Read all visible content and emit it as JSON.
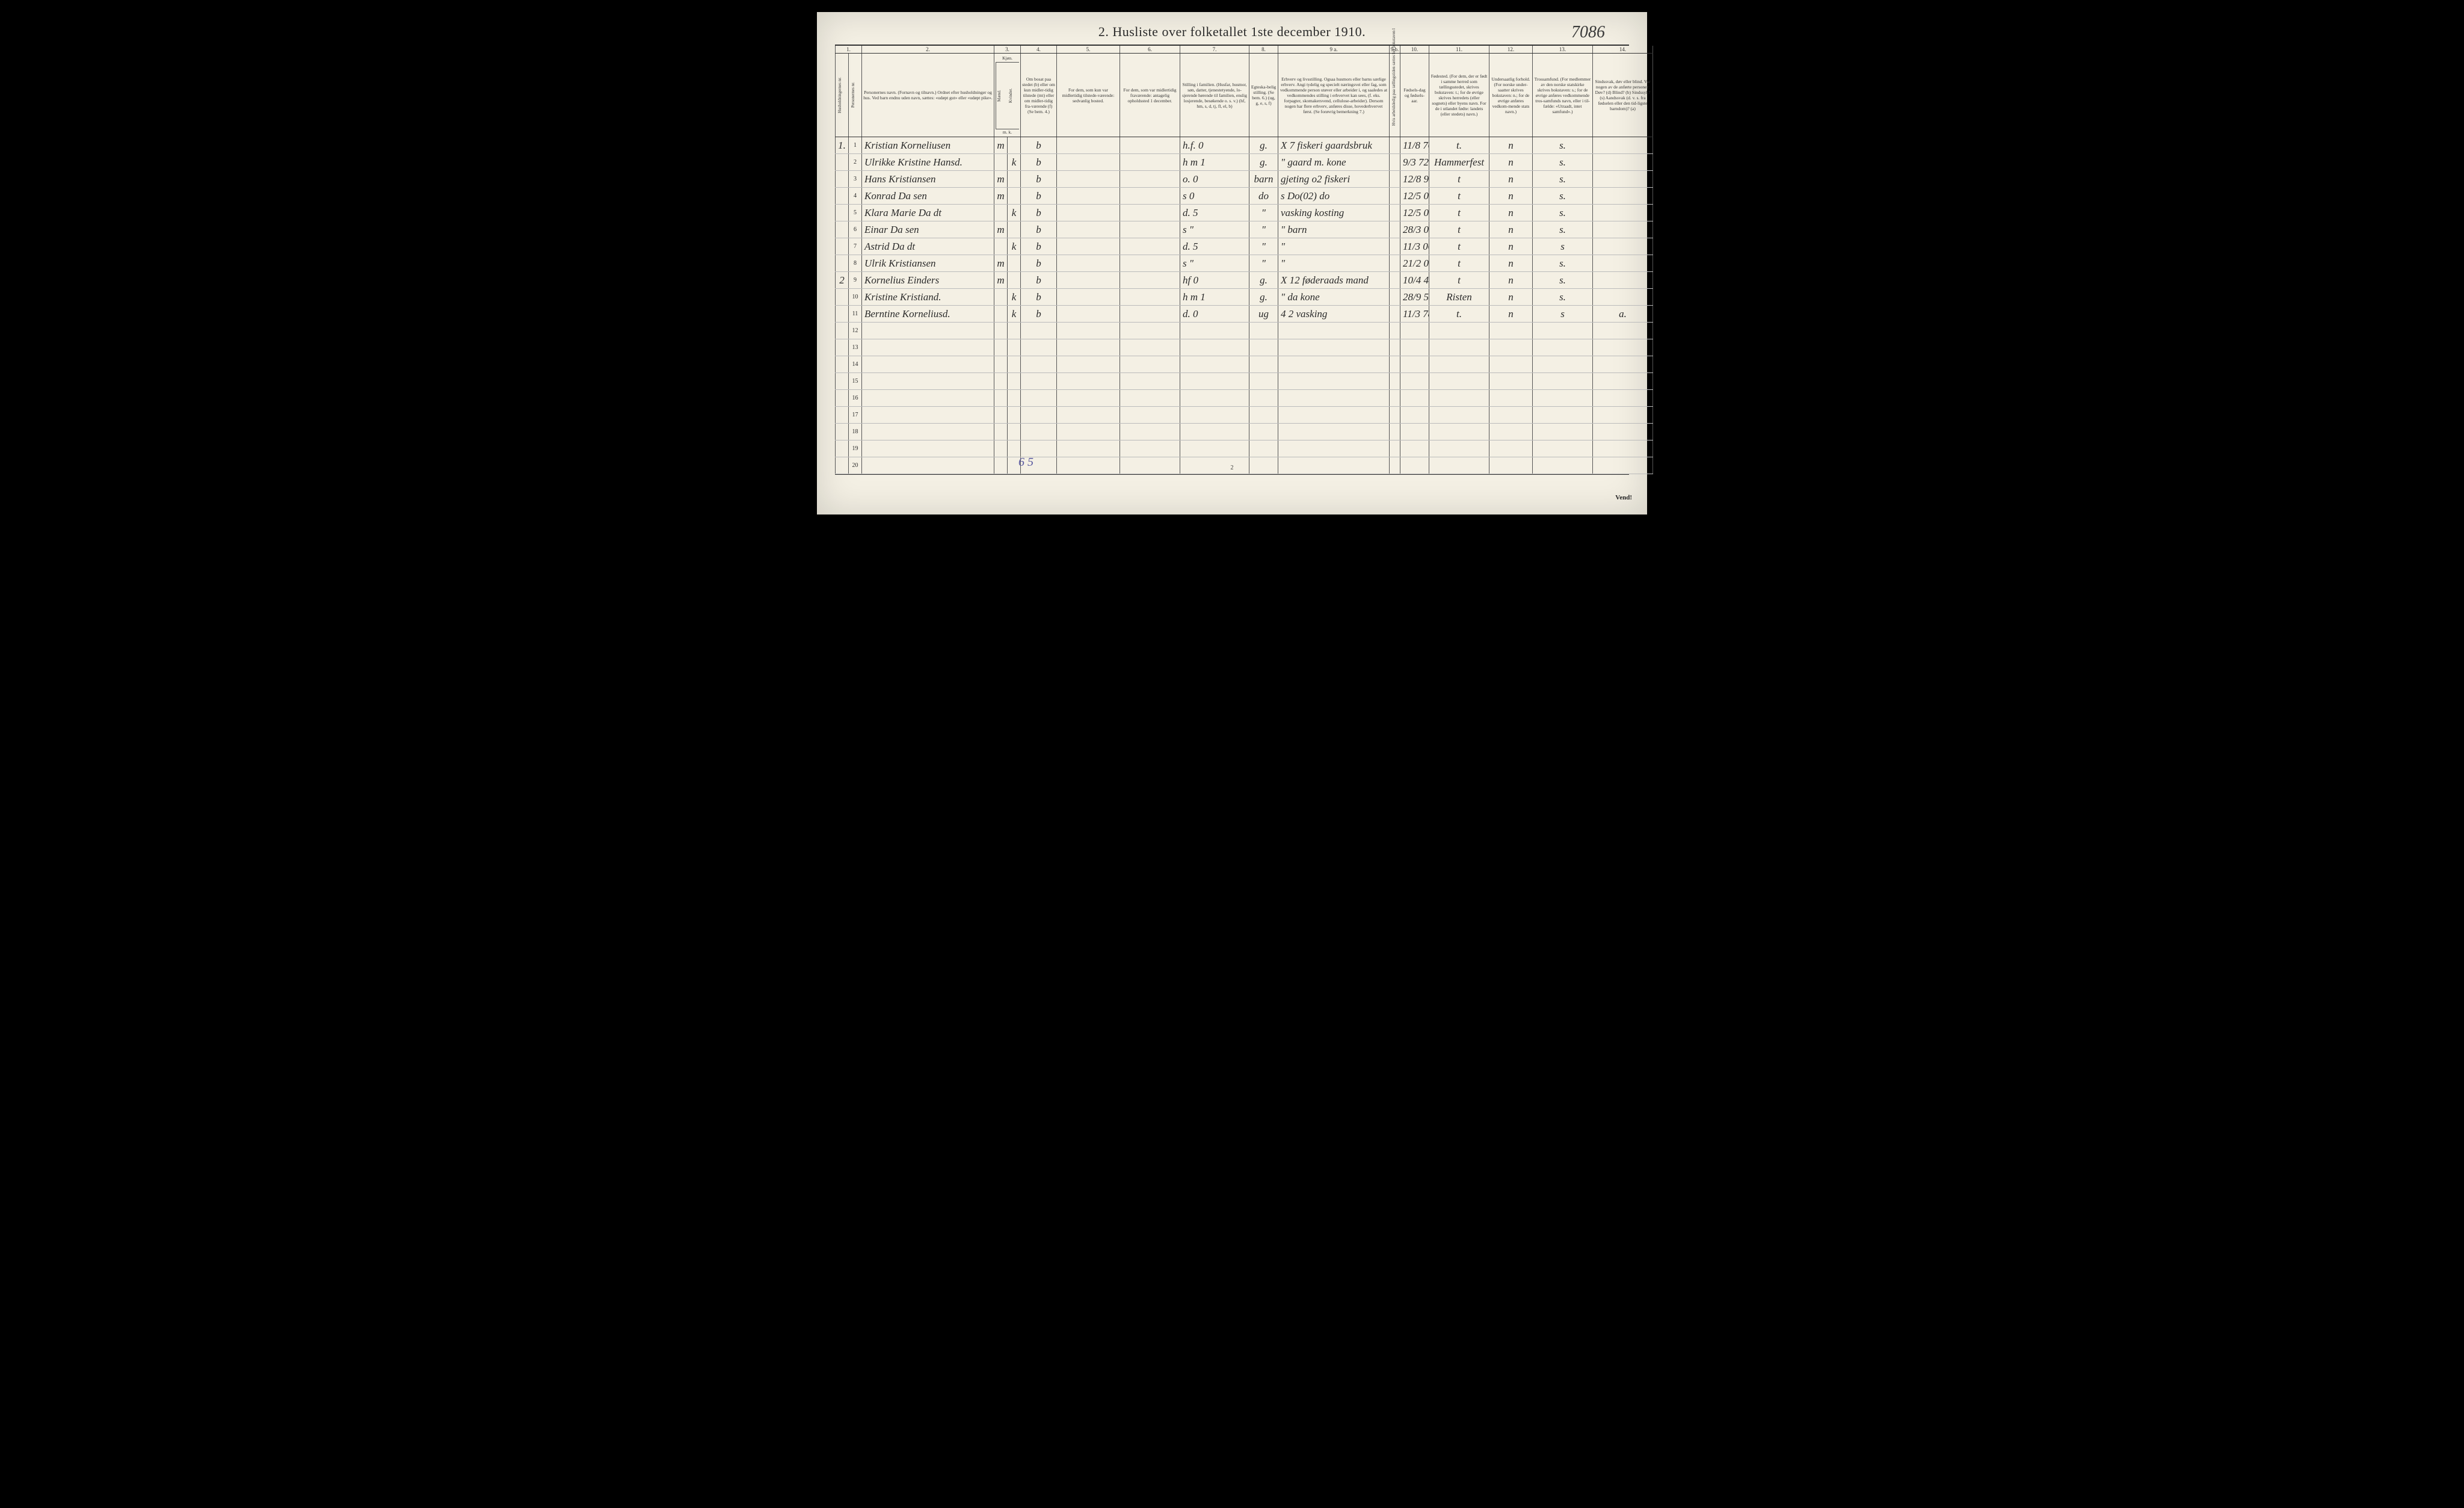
{
  "title": "2.  Husliste over folketallet 1ste december 1910.",
  "topRightHandwritten": "7086",
  "footerLeft": "6 5",
  "footerCenter": "2",
  "footerRight": "Vend!",
  "columnNumbers": [
    "1.",
    "2.",
    "3.",
    "4.",
    "5.",
    "6.",
    "7.",
    "8.",
    "9 a.",
    "9 b.",
    "10.",
    "11.",
    "12.",
    "13.",
    "14."
  ],
  "headers": {
    "h1a": "Husholdningernes nr.",
    "h1b": "Personernes nr.",
    "h2": "Personernes navn.\n(Fornavn og tilnavn.)\nOrdnet efter husholdninger og hus.\nVed barn endnu uden navn, sættes: «udøpt gut» eller «udøpt pike».",
    "h3": "Kjøn.",
    "h3a": "Mænd.",
    "h3b": "Kvinder.",
    "h3sub": "m. k.",
    "h4": "Om bosat paa stedet (b) eller om kun midler-tidig tilstede (mt) eller om midler-tidig fra-værende (f)\n(Se bem. 4.)",
    "h5": "For dem, som kun var midlertidig tilstede-værende:\nsedvanlig bosted.",
    "h6": "For dem, som var midlertidig fraværende:\nantagelig opholdssted 1 december.",
    "h7": "Stilling i familien.\n(Husfar, husmor, søn, datter, tjenestetyende, lo-sjerende hørende til familien, enslig losjerende, besøkende o. s. v.)\n(hf, hm, s, d, tj, fl, el, b)",
    "h8": "Egteska-belig stilling.\n(Se bem. 6.)\n(ug, g, e, s, f)",
    "h9a": "Erhverv og livsstilling.\nOgsaa husmors eller barns særlige erhverv.\nAngi tydelig og specielt næringsveі eller fag, som vedkommende person utøver eller arbeider i, og saaledes at vedkommendes stilling i erhvervet kan sees, (f. eks. forpagter, skomakersvend, cellulose-arbeider). Dersom nogen har flere erhverv, anføres disse, hovederhvervet først.\n(Se forøvrig bemerkning 7.)",
    "h9b": "Hvis arbeidsledig paa tællingstiden sættes her bokstaven l",
    "h10": "Fødsels-dag og fødsels-aar.",
    "h11": "Fødested.\n(For dem, der er født i samme herred som tællingsstedet, skrives bokstaven: t.; for de øvrige skrives herredets (eller sognets) eller byens navn. For de i utlandet fødte: landets (eller stedets) navn.)",
    "h12": "Undersaatlig forhold.\n(For norske under-saatter skrives bokstaven: n.; for de øvrige anføres vedkom-mende stats navn.)",
    "h13": "Trossamfund.\n(For medlemmer av den norske statskirke skrives bokstaven: s.; for de øvrige anføres vedkommende tros-samfunds navn, eller i til-fælde: «Utraadt, intet samfund».)",
    "h14": "Sindssvak, døv eller blind.\nVar nogen av de anførte personer:\nDøv? (d)\nBlind? (b)\nSindssyk? (s)\nAandssvak (d. v. s. fra fødselen eller den tid-ligste barndom)? (a)"
  },
  "rows": [
    {
      "hh": "1.",
      "p": "1",
      "name": "Kristian Korneliusen",
      "m": "m",
      "k": "",
      "b": "b",
      "c5": "",
      "c6": "",
      "c7": "h.f.  0",
      "c8": "g.",
      "c9a": "X 7 fiskeri gaardsbruk",
      "c9b": "",
      "c10": "11/8 76",
      "c11": "t.",
      "c12": "n",
      "c13": "s.",
      "c14": ""
    },
    {
      "hh": "",
      "p": "2",
      "name": "Ulrikke Kristine Hansd.",
      "m": "",
      "k": "k",
      "b": "b",
      "c5": "",
      "c6": "",
      "c7": "h m   1",
      "c8": "g.",
      "c9a": "\"   gaard m. kone",
      "c9b": "",
      "c10": "9/3 72",
      "c11": "Hammerfest",
      "c12": "n",
      "c13": "s.",
      "c14": ""
    },
    {
      "hh": "",
      "p": "3",
      "name": "Hans   Kristiansen",
      "m": "m",
      "k": "",
      "b": "b",
      "c5": "",
      "c6": "",
      "c7": "o.    0",
      "c8": "barn",
      "c9a": "gjeting o2 fiskeri",
      "c9b": "",
      "c10": "12/8 97",
      "c11": "t",
      "c12": "n",
      "c13": "s.",
      "c14": ""
    },
    {
      "hh": "",
      "p": "4",
      "name": "Konrad    Da sen",
      "m": "m",
      "k": "",
      "b": "b",
      "c5": "",
      "c6": "",
      "c7": "s    0",
      "c8": "do",
      "c9a": "s   Do(02)   do",
      "c9b": "",
      "c10": "12/5 00",
      "c11": "t",
      "c12": "n",
      "c13": "s.",
      "c14": ""
    },
    {
      "hh": "",
      "p": "5",
      "name": "Klara Marie Da dt",
      "m": "",
      "k": "k",
      "b": "b",
      "c5": "",
      "c6": "",
      "c7": "d.   5",
      "c8": "\"",
      "c9a": "vasking kosting",
      "c9b": "",
      "c10": "12/5 02",
      "c11": "t",
      "c12": "n",
      "c13": "s.",
      "c14": ""
    },
    {
      "hh": "",
      "p": "6",
      "name": "Einar     Da sen",
      "m": "m",
      "k": "",
      "b": "b",
      "c5": "",
      "c6": "",
      "c7": "s    \"",
      "c8": "\"",
      "c9a": "\"     barn",
      "c9b": "",
      "c10": "28/3 05",
      "c11": "t",
      "c12": "n",
      "c13": "s.",
      "c14": ""
    },
    {
      "hh": "",
      "p": "7",
      "name": "Astrid    Da dt",
      "m": "",
      "k": "k",
      "b": "b",
      "c5": "",
      "c6": "",
      "c7": "d.  5",
      "c8": "\"",
      "c9a": "\"",
      "c9b": "",
      "c10": "11/3 06",
      "c11": "t",
      "c12": "n",
      "c13": "s",
      "c14": ""
    },
    {
      "hh": "",
      "p": "8",
      "name": "Ulrik   Kristiansen",
      "m": "m",
      "k": "",
      "b": "b",
      "c5": "",
      "c6": "",
      "c7": "s    \"",
      "c8": "\"",
      "c9a": "\"",
      "c9b": "",
      "c10": "21/2 09",
      "c11": "t",
      "c12": "n",
      "c13": "s.",
      "c14": ""
    },
    {
      "hh": "2",
      "p": "9",
      "name": "Kornelius Einders",
      "m": "m",
      "k": "",
      "b": "b",
      "c5": "",
      "c6": "",
      "c7": "hf   0",
      "c8": "g.",
      "c9a": "X 12 føderaads mand",
      "c9b": "",
      "c10": "10/4 41",
      "c11": "t",
      "c12": "n",
      "c13": "s.",
      "c14": ""
    },
    {
      "hh": "",
      "p": "10",
      "name": "Kristine  Kristiand.",
      "m": "",
      "k": "k",
      "b": "b",
      "c5": "",
      "c6": "",
      "c7": "h m   1",
      "c8": "g.",
      "c9a": "\"    da   kone",
      "c9b": "",
      "c10": "28/9 50",
      "c11": "Risten",
      "c12": "n",
      "c13": "s.",
      "c14": ""
    },
    {
      "hh": "",
      "p": "11",
      "name": "Berntine  Korneliusd.",
      "m": "",
      "k": "k",
      "b": "b",
      "c5": "",
      "c6": "",
      "c7": "d.   0",
      "c8": "ug",
      "c9a": "4 2 vasking",
      "c9b": "",
      "c10": "11/3 78",
      "c11": "t.",
      "c12": "n",
      "c13": "s",
      "c14": "a."
    },
    {
      "hh": "",
      "p": "12",
      "name": "",
      "m": "",
      "k": "",
      "b": "",
      "c5": "",
      "c6": "",
      "c7": "",
      "c8": "",
      "c9a": "",
      "c9b": "",
      "c10": "",
      "c11": "",
      "c12": "",
      "c13": "",
      "c14": ""
    },
    {
      "hh": "",
      "p": "13",
      "name": "",
      "m": "",
      "k": "",
      "b": "",
      "c5": "",
      "c6": "",
      "c7": "",
      "c8": "",
      "c9a": "",
      "c9b": "",
      "c10": "",
      "c11": "",
      "c12": "",
      "c13": "",
      "c14": ""
    },
    {
      "hh": "",
      "p": "14",
      "name": "",
      "m": "",
      "k": "",
      "b": "",
      "c5": "",
      "c6": "",
      "c7": "",
      "c8": "",
      "c9a": "",
      "c9b": "",
      "c10": "",
      "c11": "",
      "c12": "",
      "c13": "",
      "c14": ""
    },
    {
      "hh": "",
      "p": "15",
      "name": "",
      "m": "",
      "k": "",
      "b": "",
      "c5": "",
      "c6": "",
      "c7": "",
      "c8": "",
      "c9a": "",
      "c9b": "",
      "c10": "",
      "c11": "",
      "c12": "",
      "c13": "",
      "c14": ""
    },
    {
      "hh": "",
      "p": "16",
      "name": "",
      "m": "",
      "k": "",
      "b": "",
      "c5": "",
      "c6": "",
      "c7": "",
      "c8": "",
      "c9a": "",
      "c9b": "",
      "c10": "",
      "c11": "",
      "c12": "",
      "c13": "",
      "c14": ""
    },
    {
      "hh": "",
      "p": "17",
      "name": "",
      "m": "",
      "k": "",
      "b": "",
      "c5": "",
      "c6": "",
      "c7": "",
      "c8": "",
      "c9a": "",
      "c9b": "",
      "c10": "",
      "c11": "",
      "c12": "",
      "c13": "",
      "c14": ""
    },
    {
      "hh": "",
      "p": "18",
      "name": "",
      "m": "",
      "k": "",
      "b": "",
      "c5": "",
      "c6": "",
      "c7": "",
      "c8": "",
      "c9a": "",
      "c9b": "",
      "c10": "",
      "c11": "",
      "c12": "",
      "c13": "",
      "c14": ""
    },
    {
      "hh": "",
      "p": "19",
      "name": "",
      "m": "",
      "k": "",
      "b": "",
      "c5": "",
      "c6": "",
      "c7": "",
      "c8": "",
      "c9a": "",
      "c9b": "",
      "c10": "",
      "c11": "",
      "c12": "",
      "c13": "",
      "c14": ""
    },
    {
      "hh": "",
      "p": "20",
      "name": "",
      "m": "",
      "k": "",
      "b": "",
      "c5": "",
      "c6": "",
      "c7": "",
      "c8": "",
      "c9a": "",
      "c9b": "",
      "c10": "",
      "c11": "",
      "c12": "",
      "c13": "",
      "c14": ""
    }
  ]
}
